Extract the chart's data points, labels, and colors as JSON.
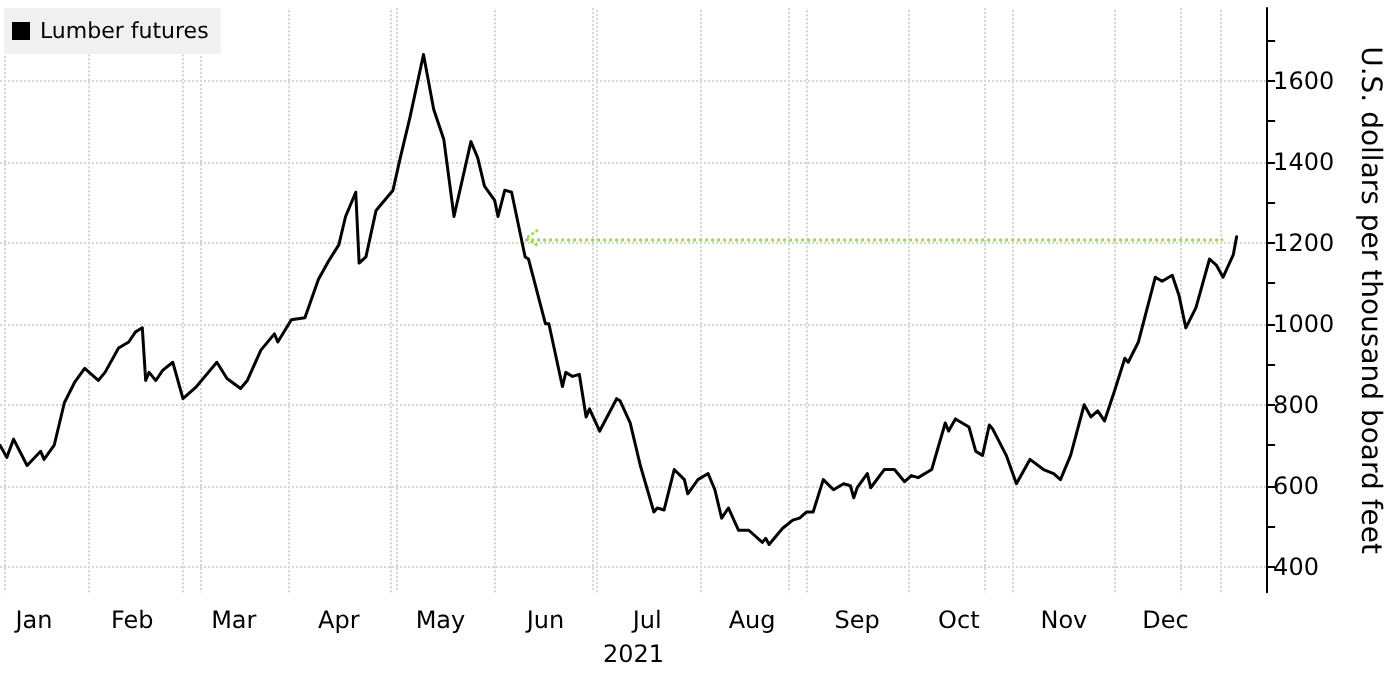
{
  "chart_data": {
    "type": "line",
    "xlabel": "2021",
    "ylabel": "U.S. dollars per thousand board feet",
    "legend": "top left",
    "grid": true,
    "marker": "none",
    "line_style": "solid",
    "xlim": [
      "2021-01-06",
      "2022-01-15"
    ],
    "xticks": [
      {
        "value": "2021-01-16",
        "label": "Jan"
      },
      {
        "value": "2021-02-01",
        "label": null
      },
      {
        "value": "2021-02-14",
        "label": "Feb"
      },
      {
        "value": "2021-03-01",
        "label": null
      },
      {
        "value": "2021-03-16",
        "label": "Mar"
      },
      {
        "value": "2021-04-01",
        "label": null
      },
      {
        "value": "2021-04-16",
        "label": "Apr"
      },
      {
        "value": "2021-05-01",
        "label": null
      },
      {
        "value": "2021-05-16",
        "label": "May"
      },
      {
        "value": "2021-06-01",
        "label": null
      },
      {
        "value": "2021-06-16",
        "label": "Jun"
      },
      {
        "value": "2021-07-01",
        "label": null
      },
      {
        "value": "2021-07-16",
        "label": "Jul"
      },
      {
        "value": "2021-08-01",
        "label": null
      },
      {
        "value": "2021-08-16",
        "label": "Aug"
      },
      {
        "value": "2021-09-01",
        "label": null
      },
      {
        "value": "2021-09-16",
        "label": "Sep"
      },
      {
        "value": "2021-10-01",
        "label": null
      },
      {
        "value": "2021-10-16",
        "label": "Oct"
      },
      {
        "value": "2021-11-01",
        "label": null
      },
      {
        "value": "2021-11-16",
        "label": "Nov"
      },
      {
        "value": "2021-12-01",
        "label": null
      },
      {
        "value": "2021-12-16",
        "label": "Dec"
      },
      {
        "value": "2022-01-01",
        "label": null
      }
    ],
    "ylim": [
      337,
      1780
    ],
    "yticks": [
      400,
      {
        "value": 500,
        "label": null
      },
      600,
      {
        "value": 700,
        "label": null
      },
      800,
      {
        "value": 900,
        "label": null
      },
      1000,
      {
        "value": 1100,
        "label": null
      },
      1200,
      {
        "value": 1300,
        "label": null
      },
      1400,
      {
        "value": 1500,
        "label": null
      },
      1600,
      {
        "value": 1700,
        "label": null
      }
    ],
    "ref_lines": [
      {
        "axis": "y",
        "value": 1210,
        "color": "#99dd44",
        "line_style": "dotted"
      }
    ],
    "x": [
      "2021-01-06",
      "2021-01-08",
      "2021-01-10",
      "2021-01-14",
      "2021-01-18",
      "2021-01-19",
      "2021-01-22",
      "2021-01-25",
      "2021-01-28",
      "2021-01-31",
      "2021-02-04",
      "2021-02-06",
      "2021-02-10",
      "2021-02-13",
      "2021-02-15",
      "2021-02-17",
      "2021-02-18",
      "2021-02-19",
      "2021-02-21",
      "2021-02-23",
      "2021-02-26",
      "2021-03-01",
      "2021-03-05",
      "2021-03-08",
      "2021-03-11",
      "2021-03-14",
      "2021-03-18",
      "2021-03-20",
      "2021-03-24",
      "2021-03-28",
      "2021-03-29",
      "2021-04-02",
      "2021-04-06",
      "2021-04-10",
      "2021-04-13",
      "2021-04-16",
      "2021-04-18",
      "2021-04-21",
      "2021-04-22",
      "2021-04-24",
      "2021-04-27",
      "2021-05-02",
      "2021-05-04",
      "2021-05-07",
      "2021-05-11",
      "2021-05-14",
      "2021-05-17",
      "2021-05-20",
      "2021-05-25",
      "2021-05-27",
      "2021-05-29",
      "2021-06-01",
      "2021-06-02",
      "2021-06-04",
      "2021-06-06",
      "2021-06-10",
      "2021-06-11",
      "2021-06-16",
      "2021-06-17",
      "2021-06-21",
      "2021-06-22",
      "2021-06-24",
      "2021-06-26",
      "2021-06-28",
      "2021-06-29",
      "2021-07-02",
      "2021-07-07",
      "2021-07-08",
      "2021-07-11",
      "2021-07-14",
      "2021-07-18",
      "2021-07-19",
      "2021-07-21",
      "2021-07-24",
      "2021-07-27",
      "2021-07-28",
      "2021-07-31",
      "2021-08-03",
      "2021-08-05",
      "2021-08-07",
      "2021-08-09",
      "2021-08-12",
      "2021-08-15",
      "2021-08-19",
      "2021-08-20",
      "2021-08-21",
      "2021-08-25",
      "2021-08-28",
      "2021-08-30",
      "2021-09-01",
      "2021-09-03",
      "2021-09-06",
      "2021-09-09",
      "2021-09-12",
      "2021-09-14",
      "2021-09-15",
      "2021-09-16",
      "2021-09-19",
      "2021-09-20",
      "2021-09-24",
      "2021-09-27",
      "2021-09-30",
      "2021-10-02",
      "2021-10-04",
      "2021-10-08",
      "2021-10-12",
      "2021-10-13",
      "2021-10-15",
      "2021-10-19",
      "2021-10-21",
      "2021-10-23",
      "2021-10-25",
      "2021-10-26",
      "2021-10-30",
      "2021-11-02",
      "2021-11-06",
      "2021-11-10",
      "2021-11-13",
      "2021-11-15",
      "2021-11-18",
      "2021-11-22",
      "2021-11-24",
      "2021-11-26",
      "2021-11-28",
      "2021-12-01",
      "2021-12-04",
      "2021-12-05",
      "2021-12-08",
      "2021-12-13",
      "2021-12-15",
      "2021-12-18",
      "2021-12-20",
      "2021-12-22",
      "2021-12-25",
      "2021-12-29",
      "2021-12-31",
      "2022-01-02",
      "2022-01-05",
      "2022-01-06"
    ],
    "series": [
      {
        "name": "Lumber futures",
        "color": "#000000",
        "values": [
          700,
          670,
          715,
          650,
          685,
          665,
          700,
          805,
          855,
          890,
          860,
          880,
          940,
          955,
          980,
          990,
          860,
          880,
          860,
          885,
          905,
          815,
          845,
          875,
          905,
          865,
          840,
          860,
          935,
          975,
          955,
          1010,
          1015,
          1110,
          1155,
          1195,
          1265,
          1325,
          1150,
          1165,
          1280,
          1330,
          1405,
          1510,
          1665,
          1530,
          1455,
          1265,
          1450,
          1410,
          1340,
          1305,
          1265,
          1330,
          1325,
          1165,
          1160,
          1000,
          1000,
          845,
          880,
          870,
          875,
          770,
          790,
          735,
          815,
          810,
          755,
          650,
          535,
          545,
          540,
          640,
          615,
          580,
          615,
          630,
          590,
          520,
          545,
          490,
          490,
          460,
          470,
          455,
          495,
          515,
          520,
          535,
          535,
          615,
          590,
          605,
          600,
          570,
          595,
          630,
          595,
          640,
          640,
          610,
          625,
          620,
          640,
          755,
          735,
          765,
          745,
          685,
          675,
          750,
          740,
          675,
          605,
          665,
          640,
          630,
          615,
          675,
          800,
          770,
          785,
          760,
          835,
          915,
          905,
          955,
          1115,
          1105,
          1120,
          1070,
          990,
          1040,
          1160,
          1145,
          1115,
          1170,
          1215
        ]
      }
    ]
  }
}
